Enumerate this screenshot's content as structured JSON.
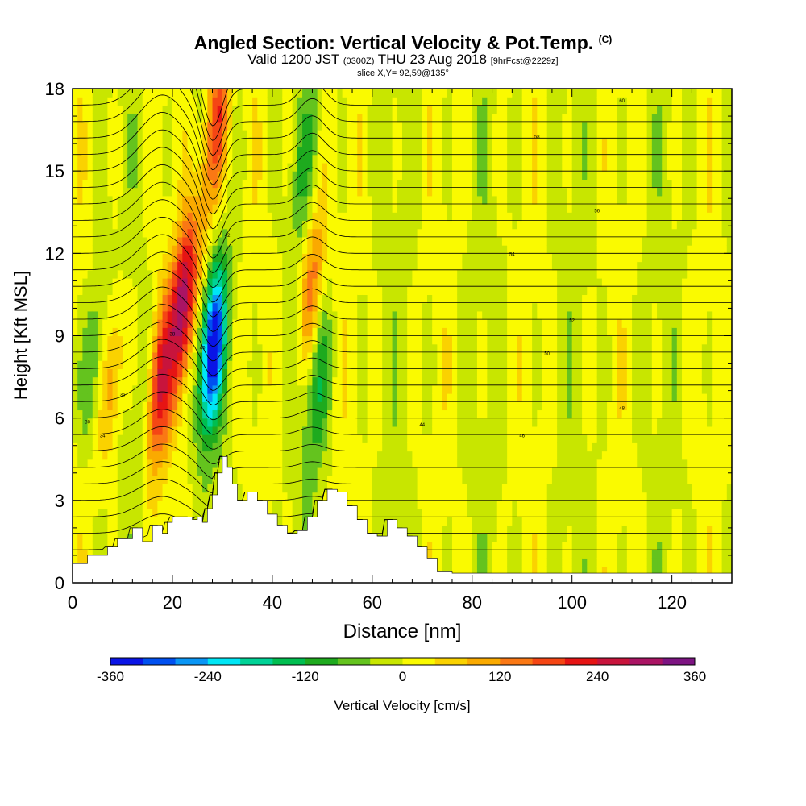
{
  "chart_data": {
    "type": "heatmap",
    "title_main": "Angled Section: Vertical Velocity & Pot.Temp.",
    "title_unit": "(C)",
    "subtitle_valid": "Valid 1200 JST",
    "subtitle_z": "(0300Z)",
    "subtitle_date": "THU 23 Aug 2018",
    "subtitle_fcst": "[9hrFcst@2229z]",
    "slice_label": "slice X,Y= 92,59@135°",
    "xlabel": "Distance [nm]",
    "ylabel": "Height [Kft MSL]",
    "xlim": [
      0,
      132
    ],
    "ylim": [
      0,
      18
    ],
    "x_ticks": [
      0,
      20,
      40,
      60,
      80,
      100,
      120
    ],
    "y_ticks": [
      0,
      3,
      6,
      9,
      12,
      15,
      18
    ],
    "colorbar": {
      "label": "Vertical Velocity [cm/s]",
      "min": -360,
      "max": 360,
      "step": 40,
      "tick_values": [
        -360,
        -240,
        -120,
        0,
        120,
        240,
        360
      ],
      "colors": [
        "#0a14e6",
        "#0050f0",
        "#0a96f5",
        "#00e6f5",
        "#00d296",
        "#00be50",
        "#1eaa1e",
        "#64c31e",
        "#c8e600",
        "#fafa00",
        "#fad200",
        "#faaa00",
        "#fa7814",
        "#f54614",
        "#e61414",
        "#c8143c",
        "#aa1464",
        "#7d1482"
      ]
    },
    "terrain_kft": [
      [
        0,
        0.7
      ],
      [
        2,
        1.0
      ],
      [
        6,
        1.3
      ],
      [
        8,
        1.6
      ],
      [
        11,
        2.0
      ],
      [
        13,
        1.5
      ],
      [
        15,
        2.1
      ],
      [
        17,
        1.8
      ],
      [
        18,
        2.2
      ],
      [
        19,
        2.4
      ],
      [
        22,
        2.4
      ],
      [
        23,
        2.3
      ],
      [
        24,
        2.4
      ],
      [
        25,
        2.2
      ],
      [
        26,
        2.7
      ],
      [
        27,
        3.2
      ],
      [
        28,
        4.0
      ],
      [
        29,
        4.6
      ],
      [
        30,
        4.2
      ],
      [
        31,
        3.6
      ],
      [
        32,
        3.0
      ],
      [
        34,
        3.3
      ],
      [
        36,
        3.0
      ],
      [
        38,
        2.5
      ],
      [
        40,
        2.1
      ],
      [
        42,
        1.8
      ],
      [
        44,
        1.9
      ],
      [
        46,
        2.4
      ],
      [
        48,
        3.0
      ],
      [
        50,
        3.4
      ],
      [
        52,
        3.3
      ],
      [
        54,
        2.8
      ],
      [
        56,
        2.3
      ],
      [
        58,
        1.8
      ],
      [
        60,
        1.7
      ],
      [
        62,
        2.3
      ],
      [
        64,
        2.0
      ],
      [
        66,
        1.7
      ],
      [
        68,
        1.3
      ],
      [
        70,
        0.9
      ],
      [
        72,
        0.4
      ],
      [
        75,
        0.35
      ],
      [
        132,
        0.35
      ]
    ],
    "updraft_cores": [
      {
        "x": 17,
        "z": 7.0,
        "w": 260
      },
      {
        "x": 22,
        "z": 10.0,
        "w": 300
      },
      {
        "x": 8,
        "z": 7.5,
        "w": 120
      },
      {
        "x": 48,
        "z": 11.0,
        "w": 150
      },
      {
        "x": 29,
        "z": 17.0,
        "w": 200
      },
      {
        "x": 26,
        "z": 13.0,
        "w": 80
      }
    ],
    "downdraft_cores": [
      {
        "x": 28,
        "z": 8.5,
        "w": -360
      },
      {
        "x": 4,
        "z": 8.0,
        "w": -100
      },
      {
        "x": 15,
        "z": 6.5,
        "w": -80
      },
      {
        "x": 49,
        "z": 7.0,
        "w": -110
      },
      {
        "x": 46,
        "z": 15.0,
        "w": -70
      }
    ],
    "theta_labels": [
      "30",
      "34",
      "36",
      "38",
      "40",
      "42",
      "44",
      "46",
      "48",
      "50",
      "52",
      "54",
      "56",
      "58",
      "60"
    ]
  }
}
